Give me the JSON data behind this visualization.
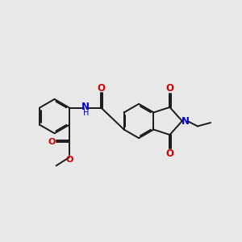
{
  "bg_color": "#e8e8e8",
  "bond_color": "#1a1a1a",
  "oxygen_color": "#cc0000",
  "nitrogen_color": "#0000cc",
  "lw": 1.4,
  "dbo": 0.055,
  "hex_r": 0.72,
  "xlim": [
    0,
    10
  ],
  "ylim": [
    1,
    9
  ]
}
